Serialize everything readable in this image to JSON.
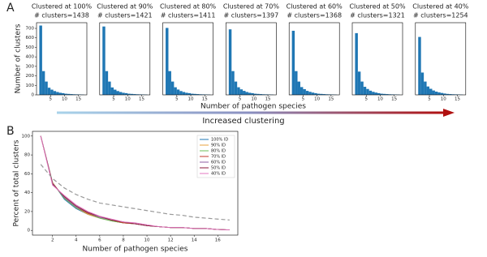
{
  "panel_a": {
    "label": "A",
    "xlabel": "Number of pathogen species",
    "annotation": "Increased clustering"
  },
  "chart_data": [
    {
      "type": "histogram",
      "title": "Clustered at 100%",
      "subtitle": "# clusters=1438",
      "ylabel": "Number of clusters",
      "color": "#1f77b4",
      "bins": [
        1,
        2,
        3,
        4,
        5,
        6,
        7,
        8,
        9,
        10,
        11,
        12,
        13,
        14,
        15,
        16,
        17
      ],
      "values": [
        730,
        250,
        140,
        75,
        55,
        40,
        30,
        22,
        18,
        12,
        10,
        8,
        6,
        5,
        4,
        3
      ],
      "xlim": [
        0,
        18
      ],
      "xticks": [
        5,
        10,
        15
      ],
      "ylim": [
        0,
        760
      ],
      "yticks": [
        0,
        100,
        200,
        300,
        400,
        500,
        600,
        700
      ]
    },
    {
      "type": "histogram",
      "title": "Clustered at 90%",
      "subtitle": "# clusters=1421",
      "color": "#1f77b4",
      "bins": [
        1,
        2,
        3,
        4,
        5,
        6,
        7,
        8,
        9,
        10,
        11,
        12,
        13,
        14,
        15,
        16,
        17
      ],
      "values": [
        720,
        250,
        140,
        78,
        55,
        40,
        30,
        22,
        18,
        12,
        10,
        8,
        6,
        5,
        4,
        3
      ],
      "xlim": [
        0,
        18
      ],
      "xticks": [
        5,
        10,
        15
      ],
      "ylim": [
        0,
        760
      ]
    },
    {
      "type": "histogram",
      "title": "Clustered at 80%",
      "subtitle": "# clusters=1411",
      "color": "#1f77b4",
      "bins": [
        1,
        2,
        3,
        4,
        5,
        6,
        7,
        8,
        9,
        10,
        11,
        12,
        13,
        14,
        15,
        16,
        17
      ],
      "values": [
        705,
        250,
        140,
        80,
        56,
        40,
        30,
        22,
        18,
        12,
        10,
        8,
        6,
        5,
        4,
        3
      ],
      "xlim": [
        0,
        18
      ],
      "xticks": [
        5,
        10,
        15
      ],
      "ylim": [
        0,
        760
      ]
    },
    {
      "type": "histogram",
      "title": "Clustered at 70%",
      "subtitle": "# clusters=1397",
      "color": "#1f77b4",
      "bins": [
        1,
        2,
        3,
        4,
        5,
        6,
        7,
        8,
        9,
        10,
        11,
        12,
        13,
        14,
        15,
        16,
        17
      ],
      "values": [
        690,
        250,
        140,
        80,
        58,
        42,
        30,
        22,
        18,
        12,
        10,
        8,
        6,
        5,
        4,
        3
      ],
      "xlim": [
        0,
        18
      ],
      "xticks": [
        5,
        10,
        15
      ],
      "ylim": [
        0,
        760
      ]
    },
    {
      "type": "histogram",
      "title": "Clustered at 60%",
      "subtitle": "# clusters=1368",
      "color": "#1f77b4",
      "bins": [
        1,
        2,
        3,
        4,
        5,
        6,
        7,
        8,
        9,
        10,
        11,
        12,
        13,
        14,
        15,
        16,
        17
      ],
      "values": [
        675,
        250,
        140,
        82,
        60,
        42,
        32,
        24,
        18,
        12,
        10,
        8,
        6,
        5,
        4,
        3
      ],
      "xlim": [
        0,
        18
      ],
      "xticks": [
        5,
        10,
        15
      ],
      "ylim": [
        0,
        760
      ]
    },
    {
      "type": "histogram",
      "title": "Clustered at 50%",
      "subtitle": "# clusters=1321",
      "color": "#1f77b4",
      "bins": [
        1,
        2,
        3,
        4,
        5,
        6,
        7,
        8,
        9,
        10,
        11,
        12,
        13,
        14,
        15,
        16,
        17
      ],
      "values": [
        650,
        245,
        140,
        85,
        62,
        44,
        32,
        24,
        18,
        12,
        10,
        8,
        6,
        5,
        4,
        3
      ],
      "xlim": [
        0,
        18
      ],
      "xticks": [
        5,
        10,
        15
      ],
      "ylim": [
        0,
        760
      ]
    },
    {
      "type": "histogram",
      "title": "Clustered at 40%",
      "subtitle": "# clusters=1254",
      "color": "#1f77b4",
      "bins": [
        1,
        2,
        3,
        4,
        5,
        6,
        7,
        8,
        9,
        10,
        11,
        12,
        13,
        14,
        15,
        16,
        17
      ],
      "values": [
        610,
        235,
        140,
        88,
        64,
        46,
        34,
        26,
        20,
        14,
        10,
        8,
        6,
        5,
        4,
        3
      ],
      "xlim": [
        0,
        18
      ],
      "xticks": [
        5,
        10,
        15
      ],
      "ylim": [
        0,
        760
      ]
    },
    {
      "type": "line",
      "panel_label": "B",
      "xlabel": "Number of pathogen species",
      "ylabel": "Percent of total clusters",
      "x": [
        1,
        2,
        3,
        4,
        5,
        6,
        7,
        8,
        9,
        10,
        11,
        12,
        13,
        14,
        15,
        16,
        17
      ],
      "series": [
        {
          "name": "100% ID",
          "color": "#1f77b4",
          "values": [
            100,
            51,
            33,
            23,
            17,
            13,
            10,
            8,
            7,
            5,
            4,
            3,
            3,
            2,
            2,
            1,
            0.5
          ]
        },
        {
          "name": "90% ID",
          "color": "#e8a23c",
          "values": [
            100,
            51,
            34,
            24,
            17,
            13,
            10,
            8,
            7,
            5,
            4,
            3,
            3,
            2,
            2,
            1,
            0.5
          ]
        },
        {
          "name": "80% ID",
          "color": "#6cbf5a",
          "values": [
            100,
            50,
            34,
            24,
            18,
            13,
            10,
            8,
            7,
            5,
            4,
            3,
            3,
            2,
            2,
            1,
            0.5
          ]
        },
        {
          "name": "70% ID",
          "color": "#c0392b",
          "values": [
            100,
            50,
            35,
            25,
            18,
            14,
            11,
            8,
            7,
            5,
            4,
            3,
            3,
            2,
            2,
            1,
            0.5
          ]
        },
        {
          "name": "60% ID",
          "color": "#8e5ea2",
          "values": [
            100,
            50,
            35,
            25,
            19,
            14,
            11,
            9,
            7,
            5,
            4,
            3,
            3,
            2,
            2,
            1,
            0.5
          ]
        },
        {
          "name": "50% ID",
          "color": "#8b1a3a",
          "values": [
            100,
            49,
            36,
            26,
            19,
            15,
            11,
            9,
            7,
            5,
            4,
            3,
            3,
            2,
            2,
            1,
            0.5
          ]
        },
        {
          "name": "40% ID",
          "color": "#e377c2",
          "values": [
            100,
            48,
            37,
            27,
            20,
            15,
            12,
            9,
            8,
            6,
            4,
            3,
            3,
            2,
            2,
            1,
            0.5
          ]
        },
        {
          "color": "#999999",
          "linestyle": "dashed",
          "values": [
            70,
            55,
            45,
            38,
            33,
            29,
            27,
            25,
            23,
            21,
            19,
            17,
            16,
            14,
            13,
            12,
            11
          ]
        }
      ],
      "xlim": [
        0.3,
        17.7
      ],
      "xticks": [
        2,
        4,
        6,
        8,
        10,
        12,
        14,
        16
      ],
      "ylim": [
        -5,
        105
      ],
      "yticks": [
        0,
        20,
        40,
        60,
        80,
        100
      ]
    }
  ]
}
